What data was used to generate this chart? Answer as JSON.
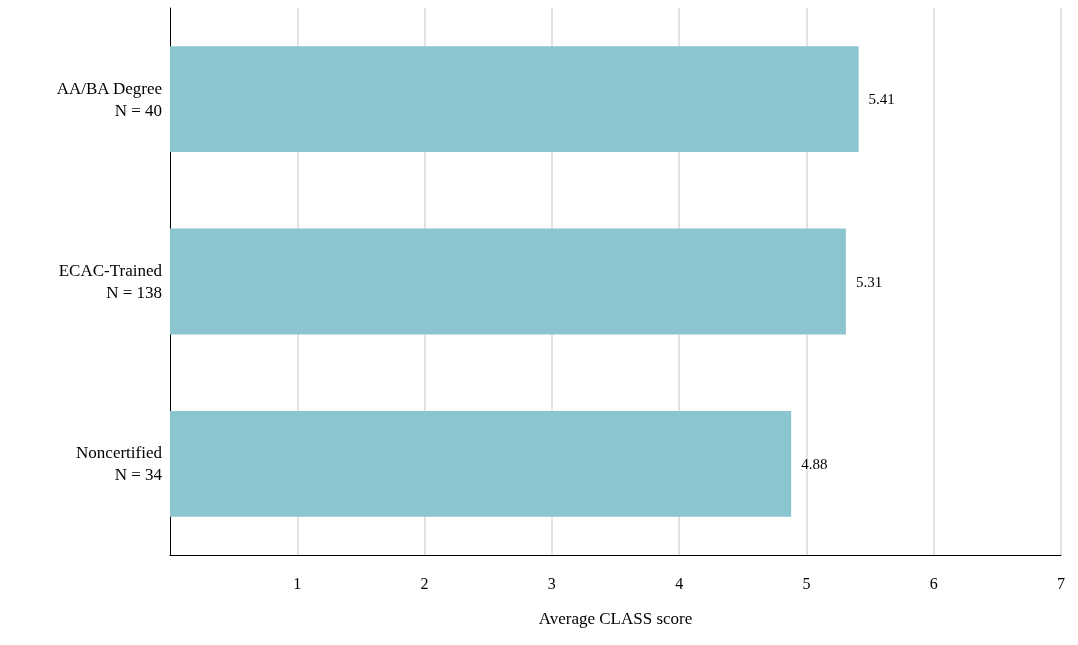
{
  "chart_data": {
    "type": "bar",
    "orientation": "horizontal",
    "categories": [
      "AA/BA Degree\nN = 40",
      "ECAC-Trained\nN = 138",
      "Noncertified\nN = 34"
    ],
    "values": [
      5.41,
      5.31,
      4.88
    ],
    "color": "#8bc6d0",
    "data_labels": true,
    "xlabel": "Average CLASS score",
    "xlim": [
      0,
      7
    ],
    "xticks": [
      1,
      2,
      3,
      4,
      5,
      6,
      7
    ],
    "grid": "x"
  }
}
